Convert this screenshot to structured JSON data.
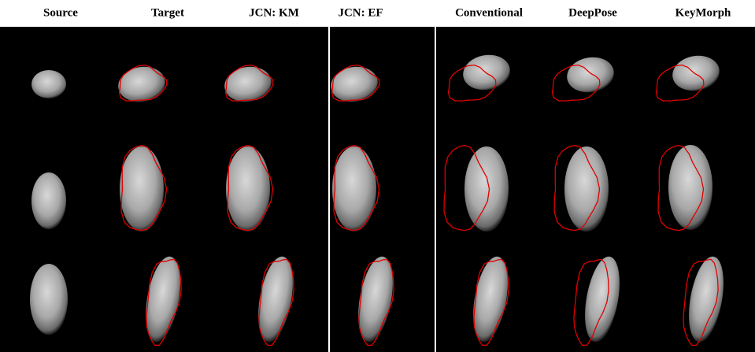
{
  "columns": [
    "Source",
    "Target",
    "JCN: KM",
    "JCN: EF",
    "Conventional",
    "DeepPose",
    "KeyMorph"
  ]
}
